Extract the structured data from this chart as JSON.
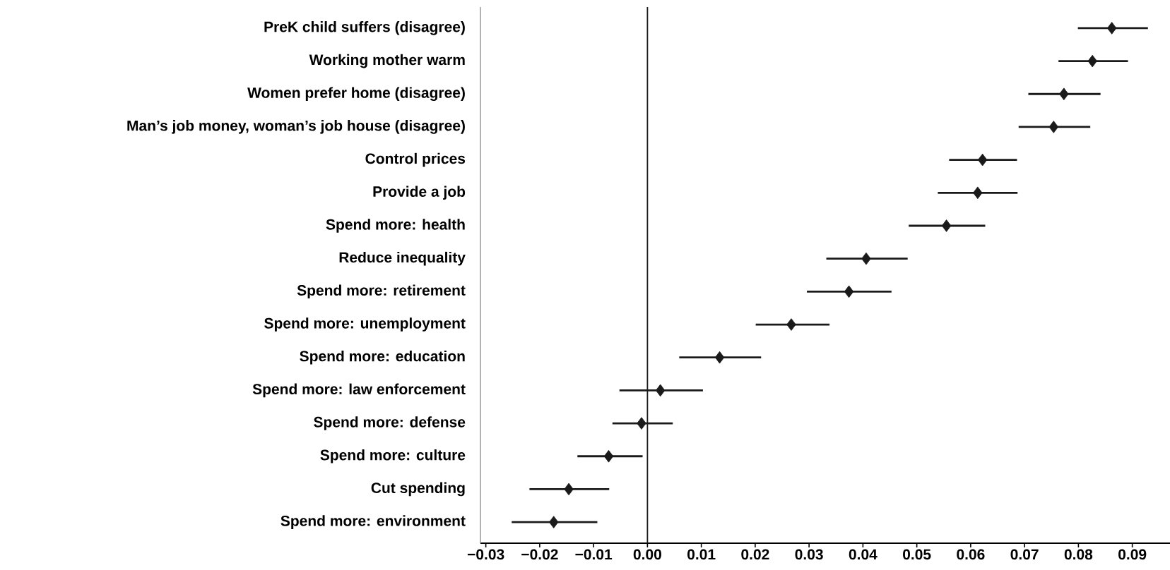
{
  "chart_data": {
    "type": "scatter",
    "orientation": "horizontal",
    "marker": "diamond",
    "categories": [
      "PreK child suffers (disagree)",
      "Working mother warm",
      "Women prefer home (disagree)",
      "Man’s job money, woman’s job house (disagree)",
      "Control prices",
      "Provide a job",
      "Spend more: health",
      "Reduce inequality",
      "Spend more: retirement",
      "Spend more: unemployment",
      "Spend more: education",
      "Spend more: law enforcement",
      "Spend more: defense",
      "Spend more: culture",
      "Cut spending",
      "Spend more: environment"
    ],
    "series": [
      {
        "color": "#1a1a1a",
        "values": [
          0.0862,
          0.0826,
          0.0773,
          0.0754,
          0.0622,
          0.0613,
          0.0555,
          0.0406,
          0.0374,
          0.0267,
          0.0134,
          0.0024,
          -0.0011,
          -0.0072,
          -0.0146,
          -0.0174
        ],
        "errors": [
          [
            0.0799,
            0.0929
          ],
          [
            0.0763,
            0.0892
          ],
          [
            0.0707,
            0.0841
          ],
          [
            0.0689,
            0.0822
          ],
          [
            0.056,
            0.0686
          ],
          [
            0.0539,
            0.0687
          ],
          [
            0.0485,
            0.0627
          ],
          [
            0.0332,
            0.0483
          ],
          [
            0.0296,
            0.0453
          ],
          [
            0.0201,
            0.0338
          ],
          [
            0.0059,
            0.0211
          ],
          [
            -0.0052,
            0.0103
          ],
          [
            -0.0065,
            0.0047
          ],
          [
            -0.013,
            -0.0009
          ],
          [
            -0.0219,
            -0.0071
          ],
          [
            -0.0252,
            -0.0093
          ]
        ]
      }
    ],
    "xlim": [
      -0.031,
      0.097
    ],
    "xticks": [
      {
        "value": -0.03,
        "label": "−0.03"
      },
      {
        "value": -0.02,
        "label": "−0.02"
      },
      {
        "value": -0.01,
        "label": "−0.01"
      },
      {
        "value": 0,
        "label": "0.00"
      },
      {
        "value": 0.01,
        "label": "0.01"
      },
      {
        "value": 0.02,
        "label": "0.02"
      },
      {
        "value": 0.03,
        "label": "0.03"
      },
      {
        "value": 0.04,
        "label": "0.04"
      },
      {
        "value": 0.05,
        "label": "0.05"
      },
      {
        "value": 0.06,
        "label": "0.06"
      },
      {
        "value": 0.07,
        "label": "0.07"
      },
      {
        "value": 0.08,
        "label": "0.08"
      },
      {
        "value": 0.09,
        "label": "0.09"
      }
    ],
    "ref_lines": [
      {
        "axis": "x",
        "value": 0,
        "color": "#1a1a1a"
      }
    ],
    "grid": false
  }
}
